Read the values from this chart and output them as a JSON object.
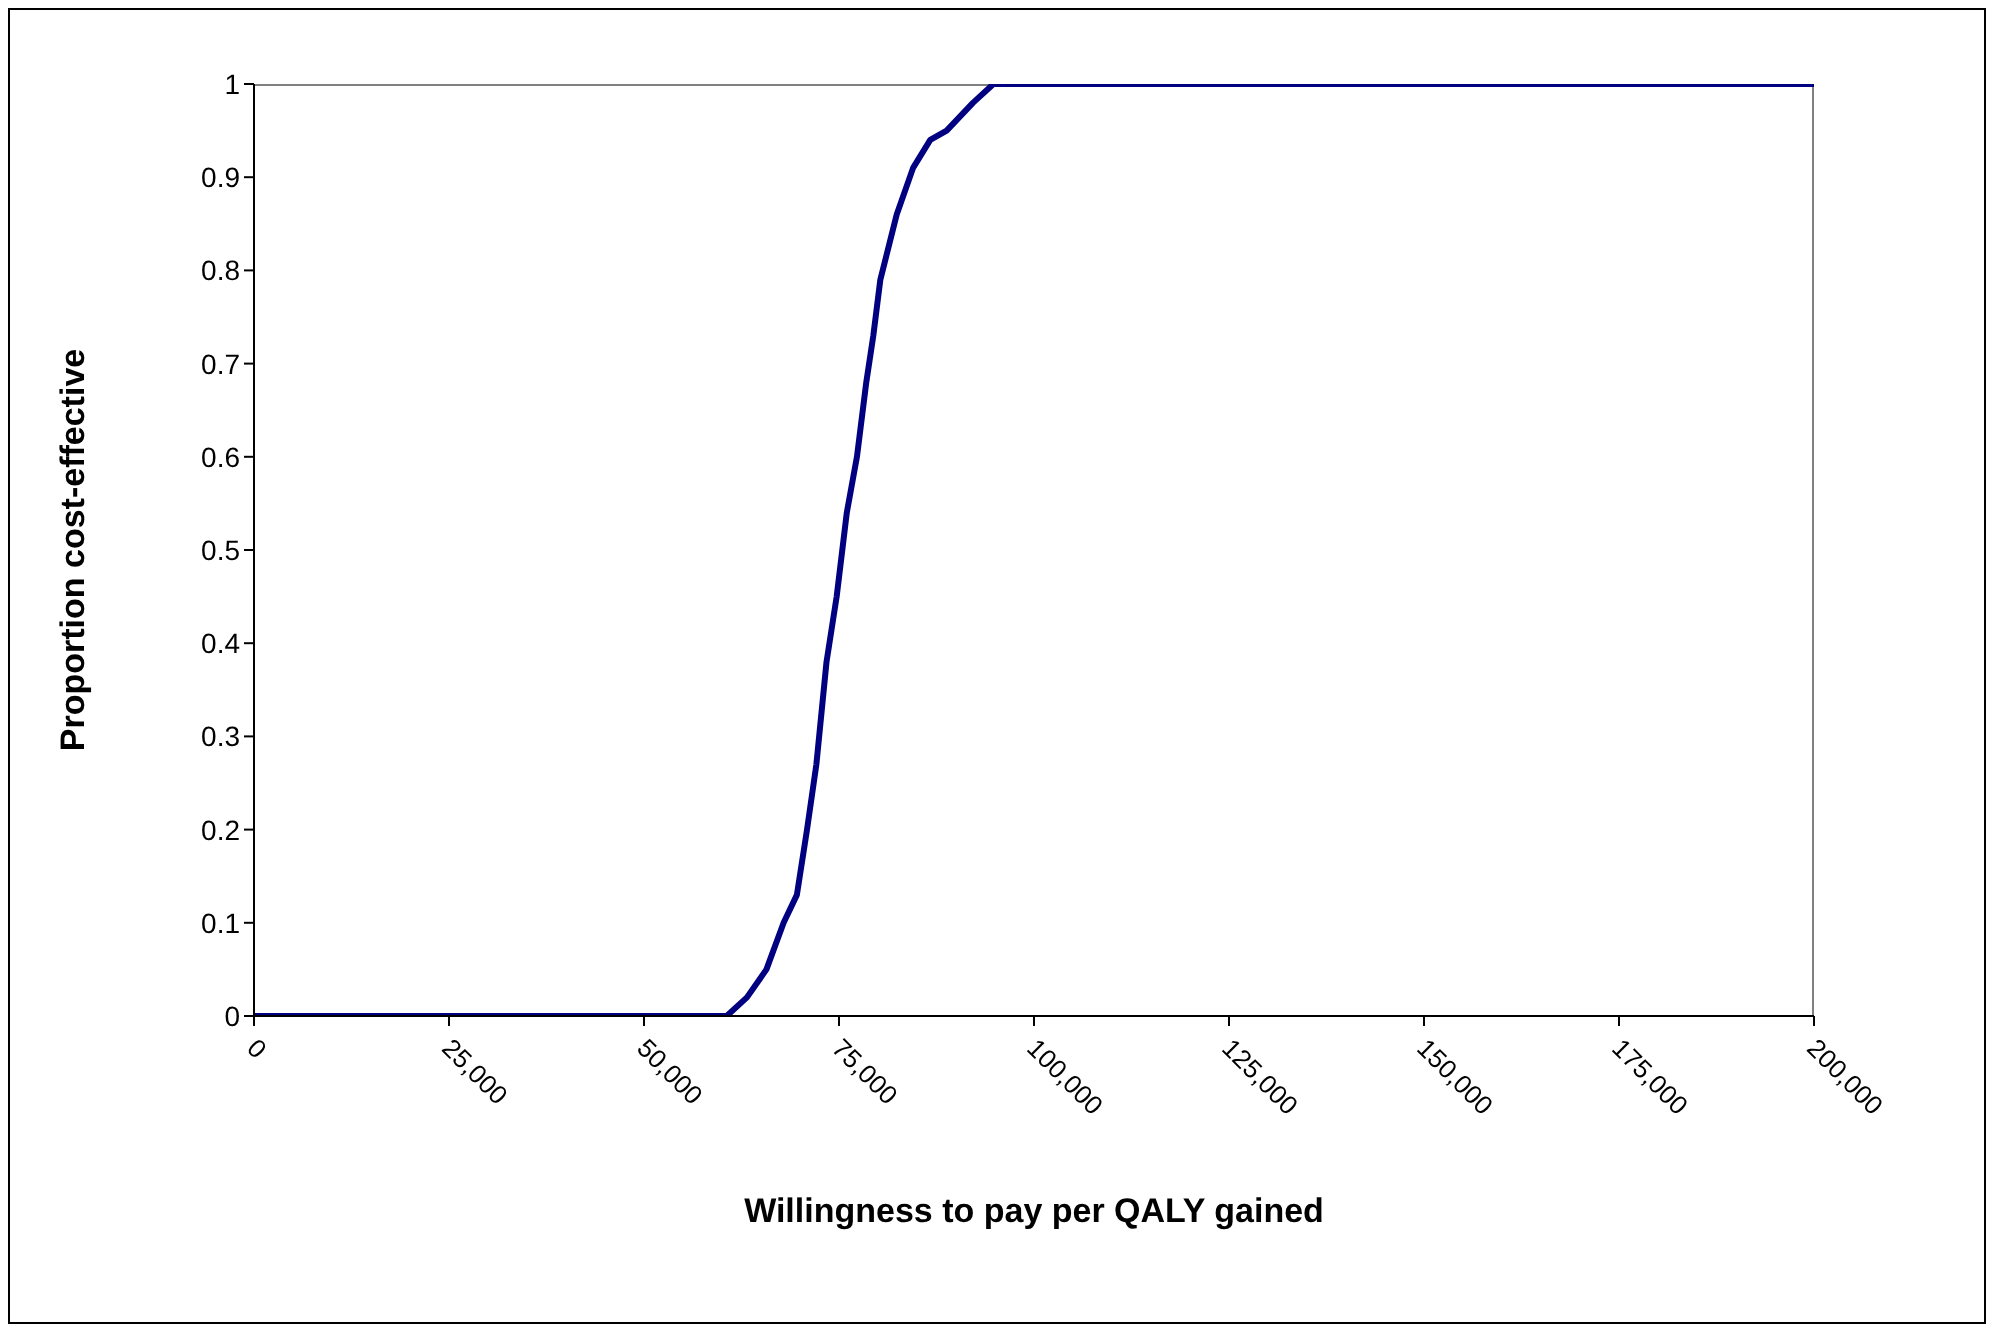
{
  "chart_data": {
    "type": "line",
    "xlabel": "Willingness to pay per QALY gained",
    "ylabel": "Proportion cost-effective",
    "x": [
      0,
      60000,
      60600,
      63200,
      65700,
      67900,
      69600,
      70900,
      72100,
      73400,
      74700,
      76000,
      77300,
      78500,
      79400,
      80300,
      82400,
      84500,
      86700,
      88800,
      92200,
      94800,
      200000
    ],
    "series": [
      {
        "color": "#000080",
        "values": [
          0,
          0,
          0,
          0.02,
          0.05,
          0.1,
          0.13,
          0.2,
          0.27,
          0.38,
          0.45,
          0.54,
          0.6,
          0.68,
          0.73,
          0.79,
          0.86,
          0.91,
          0.94,
          0.95,
          0.98,
          1,
          1
        ]
      }
    ],
    "xlim": [
      0,
      200000
    ],
    "xticks": [
      {
        "value": 0,
        "label": "0"
      },
      {
        "value": 25000,
        "label": "25,000"
      },
      {
        "value": 50000,
        "label": "50,000"
      },
      {
        "value": 75000,
        "label": "75,000"
      },
      {
        "value": 100000,
        "label": "100,000"
      },
      {
        "value": 125000,
        "label": "125,000"
      },
      {
        "value": 150000,
        "label": "150,000"
      },
      {
        "value": 175000,
        "label": "175,000"
      },
      {
        "value": 200000,
        "label": "200,000"
      }
    ],
    "ylim": [
      0,
      1
    ],
    "yticks": [
      0,
      0.1,
      0.2,
      0.3,
      0.4,
      0.5,
      0.6,
      0.7,
      0.8,
      0.9,
      1
    ]
  }
}
